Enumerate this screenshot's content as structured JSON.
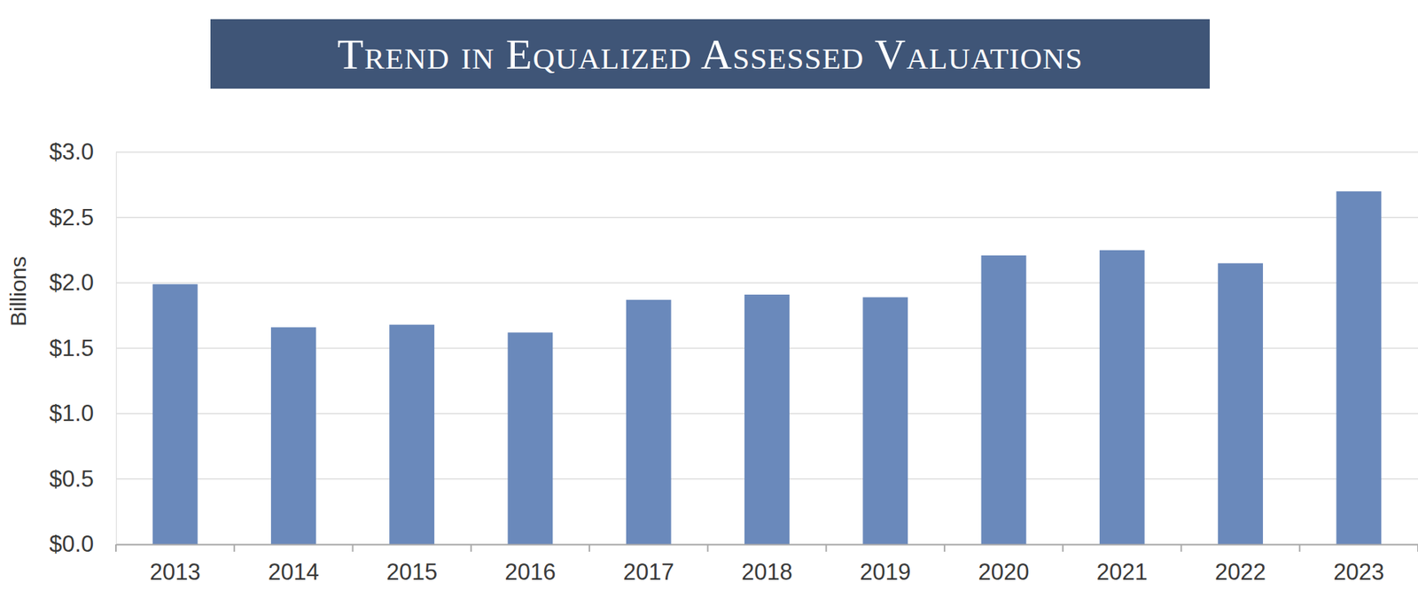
{
  "chart_data": {
    "type": "bar",
    "title": "Trend in Equalized Assessed Valuations",
    "y_label": "Billions",
    "categories": [
      "2013",
      "2014",
      "2015",
      "2016",
      "2017",
      "2018",
      "2019",
      "2020",
      "2021",
      "2022",
      "2023"
    ],
    "values": [
      1.99,
      1.66,
      1.68,
      1.62,
      1.87,
      1.91,
      1.89,
      2.21,
      2.25,
      2.15,
      2.7
    ],
    "color": "#6a89bb",
    "ylim": [
      0,
      3
    ],
    "yticks": [
      {
        "value": 0,
        "label": "$0.0"
      },
      {
        "value": 0.5,
        "label": "$0.5"
      },
      {
        "value": 1,
        "label": "$1.0"
      },
      {
        "value": 1.5,
        "label": "$1.5"
      },
      {
        "value": 2,
        "label": "$2.0"
      },
      {
        "value": 2.5,
        "label": "$2.5"
      },
      {
        "value": 3,
        "label": "$3.0"
      }
    ],
    "grid": true
  }
}
